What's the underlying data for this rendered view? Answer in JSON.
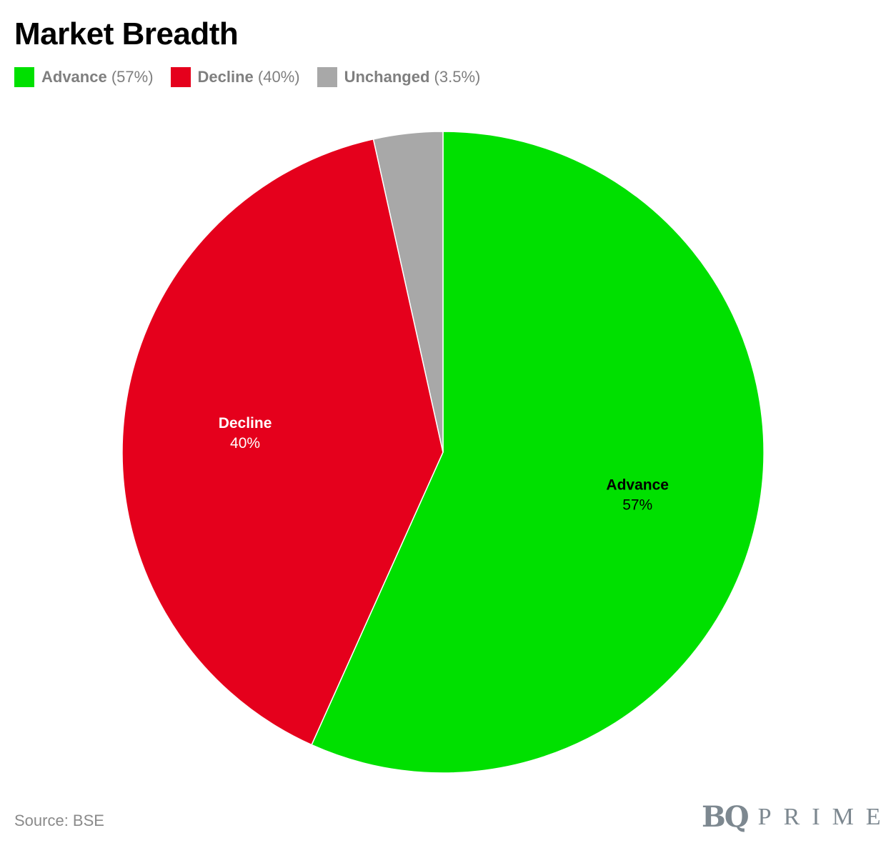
{
  "title": "Market Breadth",
  "legend": [
    {
      "name": "Advance",
      "pct": "(57%)",
      "color": "#00e000"
    },
    {
      "name": "Decline",
      "pct": "(40%)",
      "color": "#e5001c"
    },
    {
      "name": "Unchanged",
      "pct": "(3.5%)",
      "color": "#a8a8a8"
    }
  ],
  "source": "Source: BSE",
  "logo": {
    "bq": "BQ",
    "prime": "PRIME"
  },
  "chart_data": {
    "type": "pie",
    "title": "Market Breadth",
    "start_angle": "12 o'clock",
    "direction": "clockwise",
    "legend_position": "top-left",
    "slices": [
      {
        "name": "Advance",
        "value": 57,
        "label": "57%",
        "color": "#00e000",
        "label_color": "#000000"
      },
      {
        "name": "Decline",
        "value": 40,
        "label": "40%",
        "color": "#e5001c",
        "label_color": "#ffffff"
      },
      {
        "name": "Unchanged",
        "value": 3.5,
        "label": "3.5%",
        "color": "#a8a8a8",
        "label_color": ""
      }
    ]
  }
}
